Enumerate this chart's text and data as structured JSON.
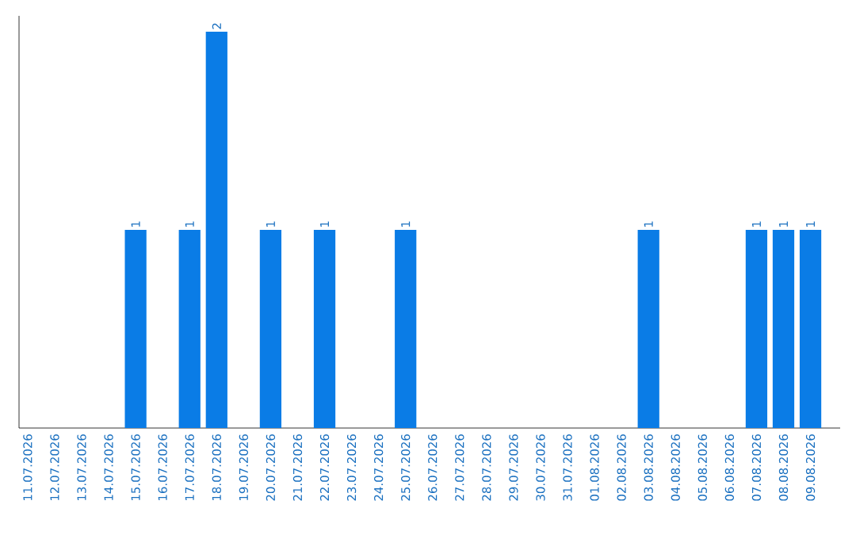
{
  "chart_data": {
    "type": "bar",
    "categories": [
      "11.07.2026",
      "12.07.2026",
      "13.07.2026",
      "14.07.2026",
      "15.07.2026",
      "16.07.2026",
      "17.07.2026",
      "18.07.2026",
      "19.07.2026",
      "20.07.2026",
      "21.07.2026",
      "22.07.2026",
      "23.07.2026",
      "24.07.2026",
      "25.07.2026",
      "26.07.2026",
      "27.07.2026",
      "28.07.2026",
      "29.07.2026",
      "30.07.2026",
      "31.07.2026",
      "01.08.2026",
      "02.08.2026",
      "03.08.2026",
      "04.08.2026",
      "05.08.2026",
      "06.08.2026",
      "07.08.2026",
      "08.08.2026",
      "09.08.2026"
    ],
    "values": [
      0,
      0,
      0,
      0,
      1,
      0,
      1,
      2,
      0,
      1,
      0,
      1,
      0,
      0,
      1,
      0,
      0,
      0,
      0,
      0,
      0,
      0,
      0,
      1,
      0,
      0,
      0,
      1,
      1,
      1
    ],
    "value_labels": [
      null,
      null,
      null,
      null,
      "1",
      null,
      "1",
      "2",
      null,
      "1",
      null,
      "1",
      null,
      null,
      "1",
      null,
      null,
      null,
      null,
      null,
      null,
      null,
      null,
      "1",
      null,
      null,
      null,
      "1",
      "1",
      "1"
    ],
    "color": "#0a7ce6",
    "grid": false
  }
}
